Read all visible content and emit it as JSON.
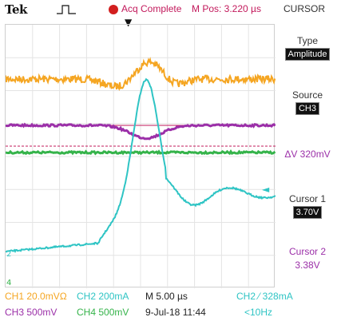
{
  "colors": {
    "ch1": "#f5a623",
    "ch2": "#2ec4c4",
    "ch3": "#9b2fa8",
    "ch4": "#35b34a",
    "accent": "#c2185b"
  },
  "top": {
    "brand": "Tek",
    "trigger_icon": "pulse-trigger-icon",
    "acq_status": "Acq Complete",
    "mpos": "M Pos: 3.220 µs",
    "menu_title": "CURSOR",
    "trigger_position_marker": "▼"
  },
  "sidebar": {
    "type_label": "Type",
    "type_value": "Amplitude",
    "source_label": "Source",
    "source_value": "CH3",
    "delta_v": "ΔV 320mV",
    "cursor1_label": "Cursor 1",
    "cursor1_value": "3.70V",
    "cursor2_label": "Cursor 2",
    "cursor2_value": "3.38V"
  },
  "status": {
    "ch1": "CH1  20.0mVΩ",
    "ch2": "CH2  200mA",
    "timebase": "M 5.00 µs",
    "trigger": "CH2  ⁄  328mA",
    "ch3": "CH3  500mV",
    "ch4": "CH4  500mV",
    "datetime": "9-Jul-18 11:44",
    "freq": "<10Hz"
  },
  "markers": {
    "ch2_ground": "2",
    "ch4_ground": "4"
  }
}
